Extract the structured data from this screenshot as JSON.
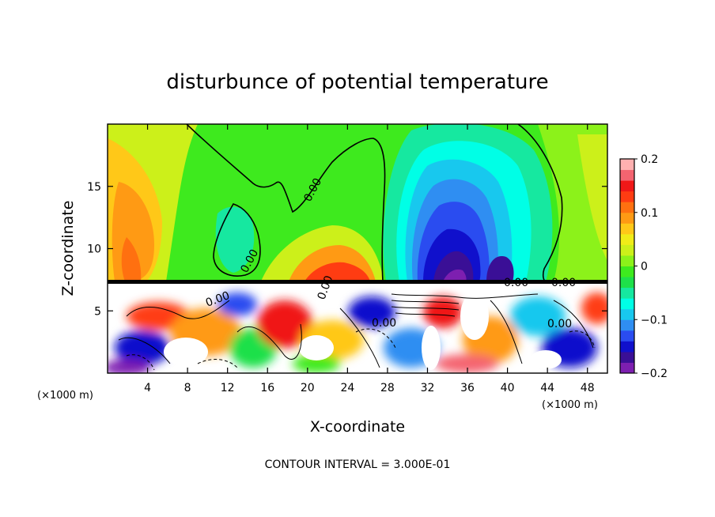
{
  "chart_data": {
    "type": "heatmap",
    "title": "disturbunce of potential temperature",
    "xlabel": "X-coordinate",
    "ylabel": "Z-coordinate",
    "x_unit_left": "(×1000 m)",
    "x_unit_right": "(×1000 m)",
    "note": "CONTOUR INTERVAL = 3.000E-01",
    "xlim": [
      0,
      50
    ],
    "ylim": [
      0,
      20
    ],
    "x_ticks": [
      "4",
      "8",
      "12",
      "16",
      "20",
      "24",
      "28",
      "32",
      "36",
      "40",
      "44",
      "48"
    ],
    "x_tick_values": [
      4,
      8,
      12,
      16,
      20,
      24,
      28,
      32,
      36,
      40,
      44,
      48
    ],
    "y_ticks": [
      "5",
      "10",
      "15"
    ],
    "y_tick_values": [
      5,
      10,
      15
    ],
    "colorbar": {
      "range": [
        -0.2,
        0.2
      ],
      "tick_labels": [
        "0.2",
        "0.1",
        "0",
        "−0.1",
        "−0.2"
      ],
      "tick_values": [
        0.2,
        0.1,
        0,
        -0.1,
        -0.2
      ],
      "colors": [
        "#7d1fb0",
        "#3a0f96",
        "#1010cc",
        "#2a4cf0",
        "#2f8ef2",
        "#18c8ee",
        "#00ffe6",
        "#16e8a0",
        "#1ee04a",
        "#3eea1e",
        "#8cf21a",
        "#ccf01a",
        "#f0ec18",
        "#ffc818",
        "#ff9a14",
        "#ff7010",
        "#ff3c12",
        "#f01818",
        "#f46470",
        "#ffb0b0"
      ]
    },
    "contour_labels": [
      "0.00",
      "0.00",
      "0.00",
      "0.00",
      "0.00",
      "0.00",
      "0.00",
      "0.00"
    ],
    "features": [
      {
        "x": 4,
        "z": 12,
        "value": 0.12
      },
      {
        "x": 22,
        "z": 8.5,
        "value": 0.1
      },
      {
        "x": 34,
        "z": 10,
        "value": -0.17
      },
      {
        "x": 14,
        "z": 11,
        "value": -0.03
      },
      {
        "x": 46,
        "z": 14,
        "value": 0.04
      }
    ]
  }
}
